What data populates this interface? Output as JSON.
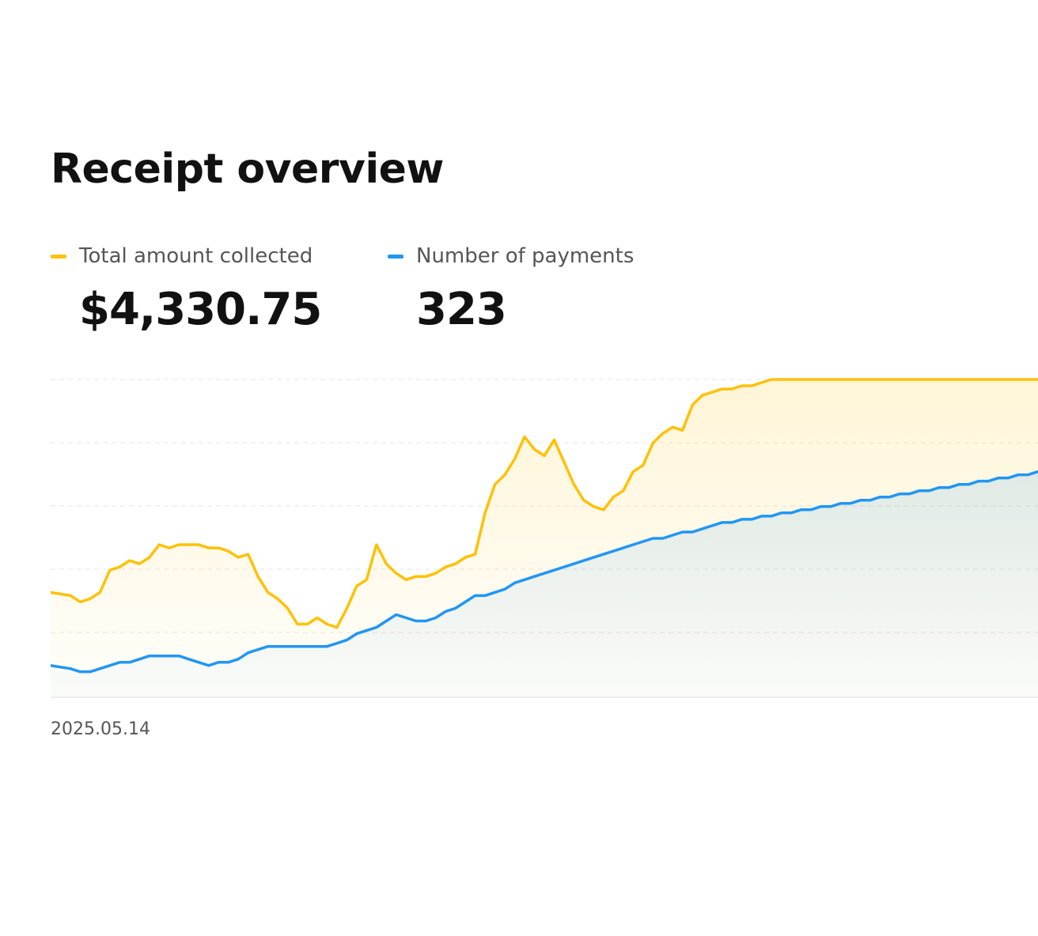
{
  "header": {
    "title": "Receipt overview"
  },
  "metrics": [
    {
      "label": "Total amount collected",
      "value": "$4,330.75",
      "color": "#FFC107"
    },
    {
      "label": "Number of payments",
      "value": "323",
      "color": "#2196F3"
    }
  ],
  "chart_data": {
    "type": "area",
    "x_tick_labels": [
      "2025.05.14"
    ],
    "grid": true,
    "legend": "top-left",
    "ylim": [
      0,
      100
    ],
    "x": [
      0,
      2,
      3,
      4,
      5,
      6,
      7,
      8,
      9,
      10,
      11,
      12,
      13,
      14,
      15,
      16,
      17,
      18,
      19,
      20,
      21,
      22,
      23,
      24,
      25,
      26,
      27,
      28,
      29,
      30,
      31,
      32,
      33,
      34,
      35,
      36,
      37,
      38,
      39,
      40,
      41,
      42,
      43,
      44,
      45,
      46,
      47,
      48,
      49,
      50,
      51,
      52,
      53,
      54,
      55,
      56,
      57,
      58,
      59,
      60,
      61,
      62,
      63,
      64,
      65,
      66,
      67,
      68,
      69,
      70,
      71,
      72,
      73,
      74,
      75,
      76,
      77,
      78,
      79,
      80,
      81,
      82,
      83,
      84,
      85,
      86,
      87,
      88,
      89,
      90,
      91,
      92,
      93,
      94,
      95,
      96,
      97,
      98,
      99,
      100
    ],
    "series": [
      {
        "name": "Total amount collected",
        "color": "#FFC107",
        "values": [
          33,
          32,
          30,
          31,
          33,
          40,
          41,
          43,
          42,
          44,
          48,
          47,
          48,
          48,
          48,
          47,
          47,
          46,
          44,
          45,
          38,
          33,
          31,
          28,
          23,
          23,
          25,
          23,
          22,
          28,
          35,
          37,
          48,
          42,
          39,
          37,
          38,
          38,
          39,
          41,
          42,
          44,
          45,
          58,
          67,
          70,
          75,
          82,
          78,
          76,
          81,
          74,
          67,
          62,
          60,
          59,
          63,
          65,
          71,
          73,
          80,
          83,
          85,
          84,
          92,
          95,
          96,
          97,
          97,
          98,
          98,
          99,
          100,
          100,
          100,
          100,
          100,
          100,
          100,
          100,
          100,
          100,
          100,
          100,
          100,
          100,
          100,
          100,
          100,
          100,
          100,
          100,
          100,
          100,
          100,
          100,
          100,
          100,
          100,
          100
        ]
      },
      {
        "name": "Number of payments",
        "color": "#2196F3",
        "values": [
          10,
          9,
          8,
          8,
          9,
          10,
          11,
          11,
          12,
          13,
          13,
          13,
          13,
          12,
          11,
          10,
          11,
          11,
          12,
          14,
          15,
          16,
          16,
          16,
          16,
          16,
          16,
          16,
          17,
          18,
          20,
          21,
          22,
          24,
          26,
          25,
          24,
          24,
          25,
          27,
          28,
          30,
          32,
          32,
          33,
          34,
          36,
          37,
          38,
          39,
          40,
          41,
          42,
          43,
          44,
          45,
          46,
          47,
          48,
          49,
          50,
          50,
          51,
          52,
          52,
          53,
          54,
          55,
          55,
          56,
          56,
          57,
          57,
          58,
          58,
          59,
          59,
          60,
          60,
          61,
          61,
          62,
          62,
          63,
          63,
          64,
          64,
          65,
          65,
          66,
          66,
          67,
          67,
          68,
          68,
          69,
          69,
          70,
          70,
          71
        ]
      }
    ]
  }
}
